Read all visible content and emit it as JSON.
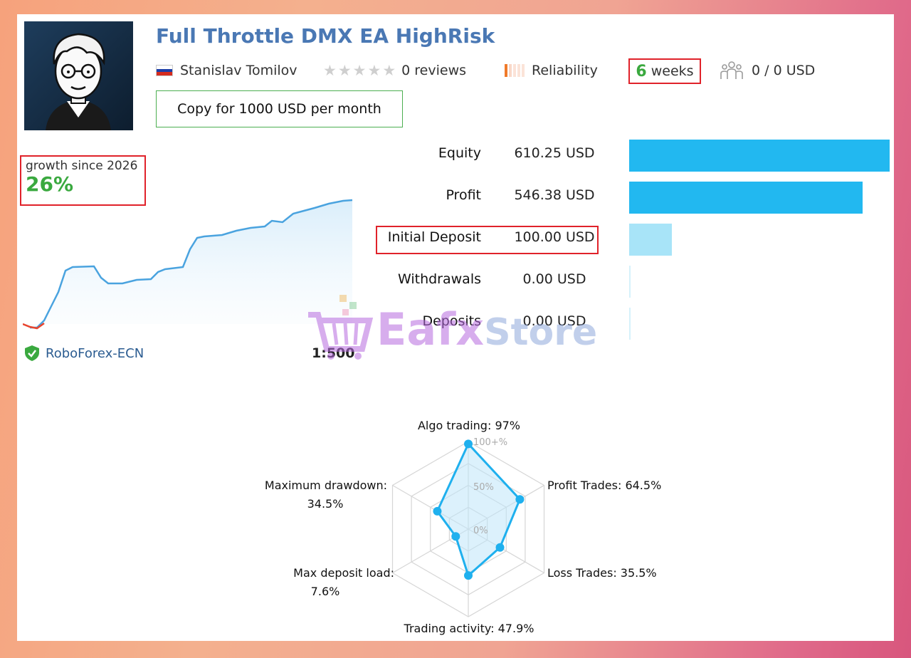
{
  "title": "Full Throttle DMX EA HighRisk",
  "author": {
    "name": "Stanislav Tomilov",
    "flag_icon": "russia-flag-icon"
  },
  "reviews": {
    "count_label": "0 reviews",
    "stars": 0
  },
  "reliability_label": "Reliability",
  "age": {
    "number": "6",
    "unit": "weeks"
  },
  "subscribers": {
    "icon": "subscribers-icon",
    "label": "0 / 0 USD"
  },
  "copy_button": "Copy for 1000 USD per month",
  "growth": {
    "label": "growth since 2026",
    "value": "26%"
  },
  "server": {
    "name": "RoboForex-ECN",
    "leverage": "1:500"
  },
  "stats": [
    {
      "label": "Equity",
      "value": "610.25 USD",
      "amount": 610.25
    },
    {
      "label": "Profit",
      "value": "546.38 USD",
      "amount": 546.38
    },
    {
      "label": "Initial Deposit",
      "value": "100.00 USD",
      "amount": 100.0
    },
    {
      "label": "Withdrawals",
      "value": "0.00 USD",
      "amount": 0
    },
    {
      "label": "Deposits",
      "value": "0.00 USD",
      "amount": 0
    }
  ],
  "radar": {
    "axes": [
      {
        "label": "Algo trading: 97%",
        "value": 97
      },
      {
        "label": "Profit Trades: 64.5%",
        "value": 64.5
      },
      {
        "label": "Loss Trades: 35.5%",
        "value": 35.5
      },
      {
        "label": "Trading activity: 47.9%",
        "value": 47.9
      },
      {
        "label": "Max deposit load:",
        "label2": "7.6%",
        "value": 7.6
      },
      {
        "label": "Maximum drawdown:",
        "label2": "34.5%",
        "value": 34.5
      }
    ],
    "ring_labels": [
      "100+%",
      "50%",
      "0%"
    ]
  },
  "watermark": {
    "part1": "Eafx",
    "part2": "Store"
  },
  "colors": {
    "title": "#4a78b4",
    "green": "#3aa93f",
    "bar_dark": "#22b8f0",
    "bar_light": "#a8e4f8",
    "red_box": "#e0222a",
    "line": "#4aa3df"
  }
}
